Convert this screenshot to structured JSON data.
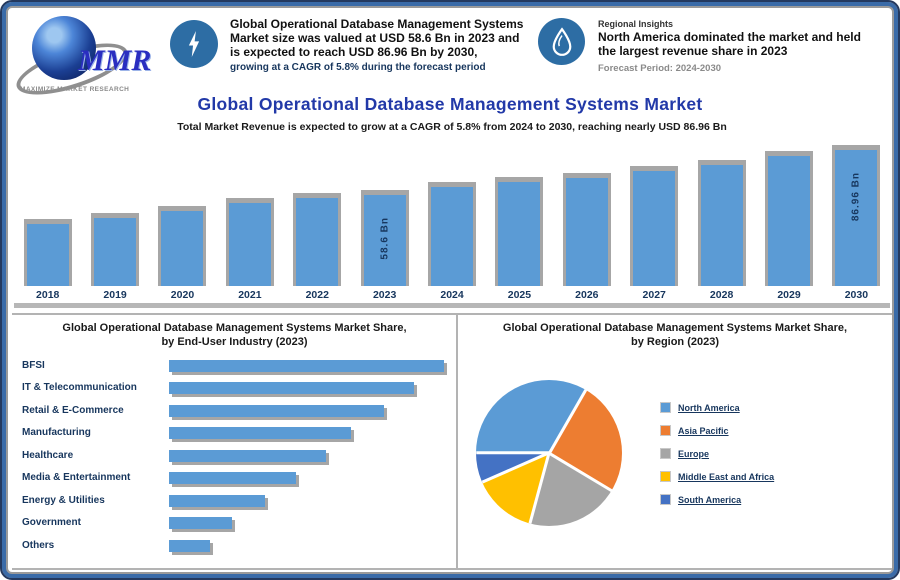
{
  "logo": {
    "text": "MMR",
    "caption": "MAXIMIZE MARKET RESEARCH"
  },
  "header": {
    "stat1": {
      "icon": "lightning-icon",
      "text_bold": "Global Operational Database Management Systems Market size was valued at USD 58.6 Bn in 2023 and is expected to reach USD 86.96 Bn by 2030,",
      "text_sub": "growing at a CAGR of 5.8% during the forecast period"
    },
    "stat2": {
      "icon": "droplet-icon",
      "text_small": "Regional Insights",
      "text_bold": "North America dominated the market and held the largest revenue share in 2023",
      "text_gray": "Forecast Period: 2024-2030"
    }
  },
  "title": "Global Operational Database Management Systems Market",
  "subtitle": "Total Market Revenue is expected to grow at a CAGR of 5.8% from 2024 to 2030, reaching nearly USD 86.96 Bn",
  "colors": {
    "bar_blue": "#5b9bd5",
    "shadow_gray": "#a6a6a6",
    "title_blue": "#2239a8",
    "navy": "#17365d",
    "icon_circle_blue": "#2d6da4"
  },
  "chart_data": [
    {
      "type": "bar",
      "title": "Global Operational Database Management Systems Market Revenue",
      "unit": "USD Bn",
      "categories": [
        "2018",
        "2019",
        "2020",
        "2021",
        "2022",
        "2023",
        "2024",
        "2025",
        "2026",
        "2027",
        "2028",
        "2029",
        "2030"
      ],
      "values": [
        40,
        43.5,
        48,
        53,
        56.5,
        58.6,
        63.7,
        66.8,
        69.3,
        73.7,
        77.5,
        83.2,
        86.96
      ],
      "bar_labels": {
        "5": "58.6 Bn",
        "12": "86.96 Bn"
      },
      "ylim": [
        0,
        95
      ],
      "grid": false,
      "bar_color": "#5b9bd5",
      "shadow_color": "#a6a6a6"
    },
    {
      "type": "bar",
      "orientation": "horizontal",
      "title_line1": "Global Operational Database Management Systems Market Share,",
      "title_line2": "by End-User Industry (2023)",
      "categories": [
        "BFSI",
        "IT & Telecommunication",
        "Retail & E-Commerce",
        "Manufacturing",
        "Healthcare",
        "Media & Entertainment",
        "Energy & Utilities",
        "Government",
        "Others"
      ],
      "values_pct_of_max": [
        100,
        89,
        78,
        66,
        57,
        46,
        35,
        23,
        15
      ],
      "bar_color": "#5b9bd5",
      "shadow_color": "#a6a6a6"
    },
    {
      "type": "pie",
      "title_line1": "Global Operational Database Management Systems Market Share,",
      "title_line2": "by Region (2023)",
      "labels": [
        "North America",
        "Asia Pacific",
        "Europe",
        "Middle East and Africa",
        "South America"
      ],
      "values_pct": [
        33.3,
        25.3,
        20.6,
        14.2,
        6.6
      ],
      "colors": [
        "#5b9bd5",
        "#ed7d31",
        "#a5a5a5",
        "#ffc000",
        "#4472c4"
      ],
      "legend_position": "right"
    }
  ]
}
